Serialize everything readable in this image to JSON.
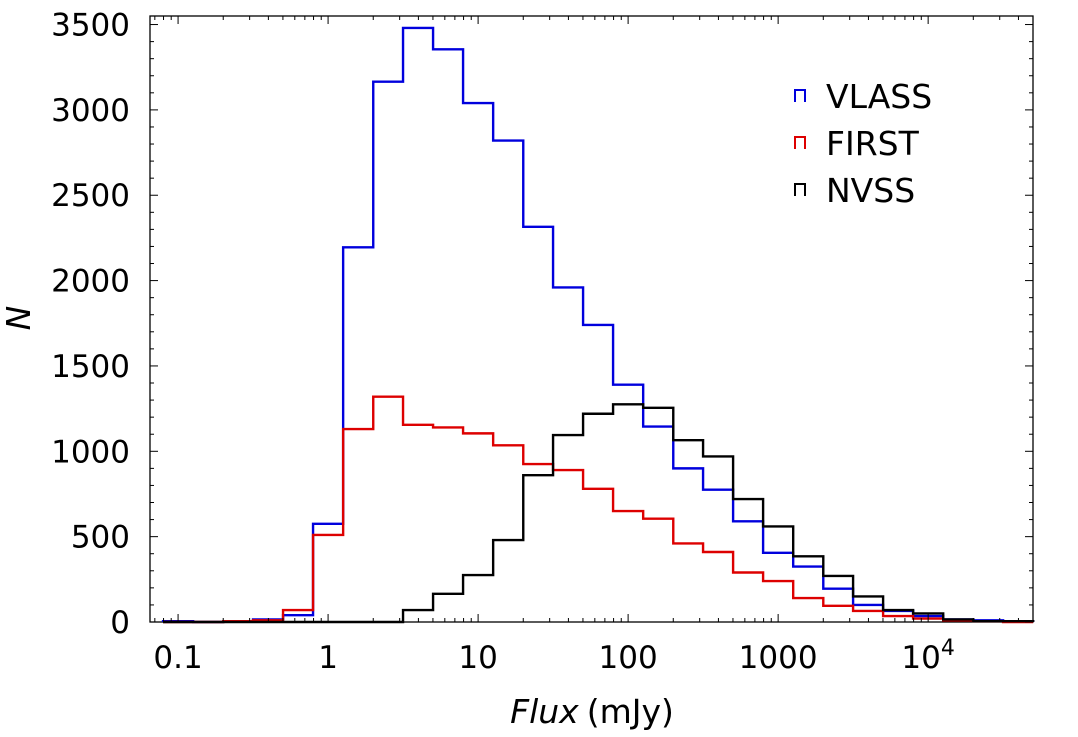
{
  "chart_data": {
    "type": "step-histogram",
    "title": "",
    "xlabel": "Flux",
    "xlabel_unit": "(mJy)",
    "ylabel": "N",
    "xscale": "log",
    "xlim": [
      0.065,
      50000
    ],
    "ylim": [
      0,
      3550
    ],
    "x_ticks": [
      {
        "value": 0.1,
        "label": "0.1"
      },
      {
        "value": 1,
        "label": "1"
      },
      {
        "value": 10,
        "label": "10"
      },
      {
        "value": 100,
        "label": "100"
      },
      {
        "value": 1000,
        "label": "1000"
      },
      {
        "value": 10000,
        "label": "10",
        "exp": "4"
      }
    ],
    "y_ticks": [
      0,
      500,
      1000,
      1500,
      2000,
      2500,
      3000,
      3500
    ],
    "legend_position": "top-right",
    "bin_edges": [
      0.0794,
      0.126,
      0.2,
      0.316,
      0.501,
      0.794,
      1.26,
      2.0,
      3.16,
      5.01,
      7.94,
      12.6,
      20.0,
      31.6,
      50.1,
      79.4,
      126,
      200,
      316,
      501,
      794,
      1260,
      2000,
      3160,
      5010,
      7940,
      12600,
      20000,
      31600,
      50100
    ],
    "series": [
      {
        "name": "VLASS",
        "color": "#0000dd",
        "counts": [
          5,
          0,
          5,
          15,
          40,
          575,
          2195,
          3165,
          3480,
          3355,
          3040,
          2820,
          2315,
          1960,
          1740,
          1390,
          1145,
          900,
          775,
          590,
          405,
          325,
          195,
          100,
          65,
          35,
          15,
          10,
          5
        ]
      },
      {
        "name": "FIRST",
        "color": "#dd0000",
        "counts": [
          0,
          0,
          5,
          10,
          70,
          510,
          1130,
          1320,
          1155,
          1140,
          1105,
          1035,
          925,
          890,
          780,
          650,
          605,
          460,
          410,
          290,
          240,
          140,
          95,
          65,
          35,
          20,
          10,
          5,
          0
        ]
      },
      {
        "name": "NVSS",
        "color": "#000000",
        "counts": [
          0,
          0,
          0,
          0,
          0,
          0,
          0,
          0,
          70,
          165,
          275,
          480,
          860,
          1095,
          1220,
          1275,
          1255,
          1065,
          970,
          720,
          560,
          385,
          270,
          150,
          70,
          50,
          15,
          5,
          5
        ]
      }
    ]
  }
}
